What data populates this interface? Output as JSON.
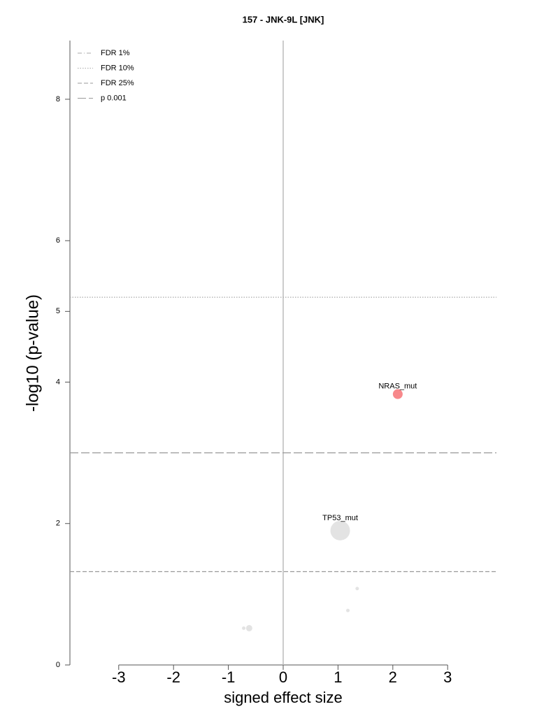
{
  "chart_data": {
    "type": "scatter",
    "title": "157 - JNK-9L [JNK]",
    "xlabel": "signed effect size",
    "ylabel": "-log10 (p-value)",
    "xlim": [
      -3.89,
      3.89
    ],
    "ylim": [
      0,
      8.83
    ],
    "xticks": [
      -3,
      -2,
      -1,
      0,
      1,
      2,
      3
    ],
    "yticks": [
      0,
      2,
      4,
      5,
      6,
      8
    ],
    "zero_line": true,
    "x": [
      2.09,
      1.04,
      1.35,
      1.18,
      -0.62,
      -0.72
    ],
    "values": [
      3.83,
      1.9,
      1.08,
      0.77,
      0.52,
      0.52
    ],
    "sizes": [
      7,
      14,
      2.5,
      2.5,
      4.5,
      2.5
    ],
    "colors": [
      "#f7888b",
      "#e3e3e3",
      "#e3e3e3",
      "#e3e3e3",
      "#e3e3e3",
      "#e3e3e3"
    ],
    "point_labels": [
      "NRAS_mut",
      "TP53_mut",
      null,
      null,
      null,
      null
    ],
    "legend": "upper left",
    "thresholds": [
      {
        "name": "FDR 1%",
        "style": "dashdot"
      },
      {
        "name": "FDR 10%",
        "style": "dotted",
        "value": 5.2
      },
      {
        "name": "FDR 25%",
        "style": "dashed",
        "value": 1.32
      },
      {
        "name": "p 0.001",
        "style": "longdash",
        "value": 3.0
      }
    ]
  }
}
